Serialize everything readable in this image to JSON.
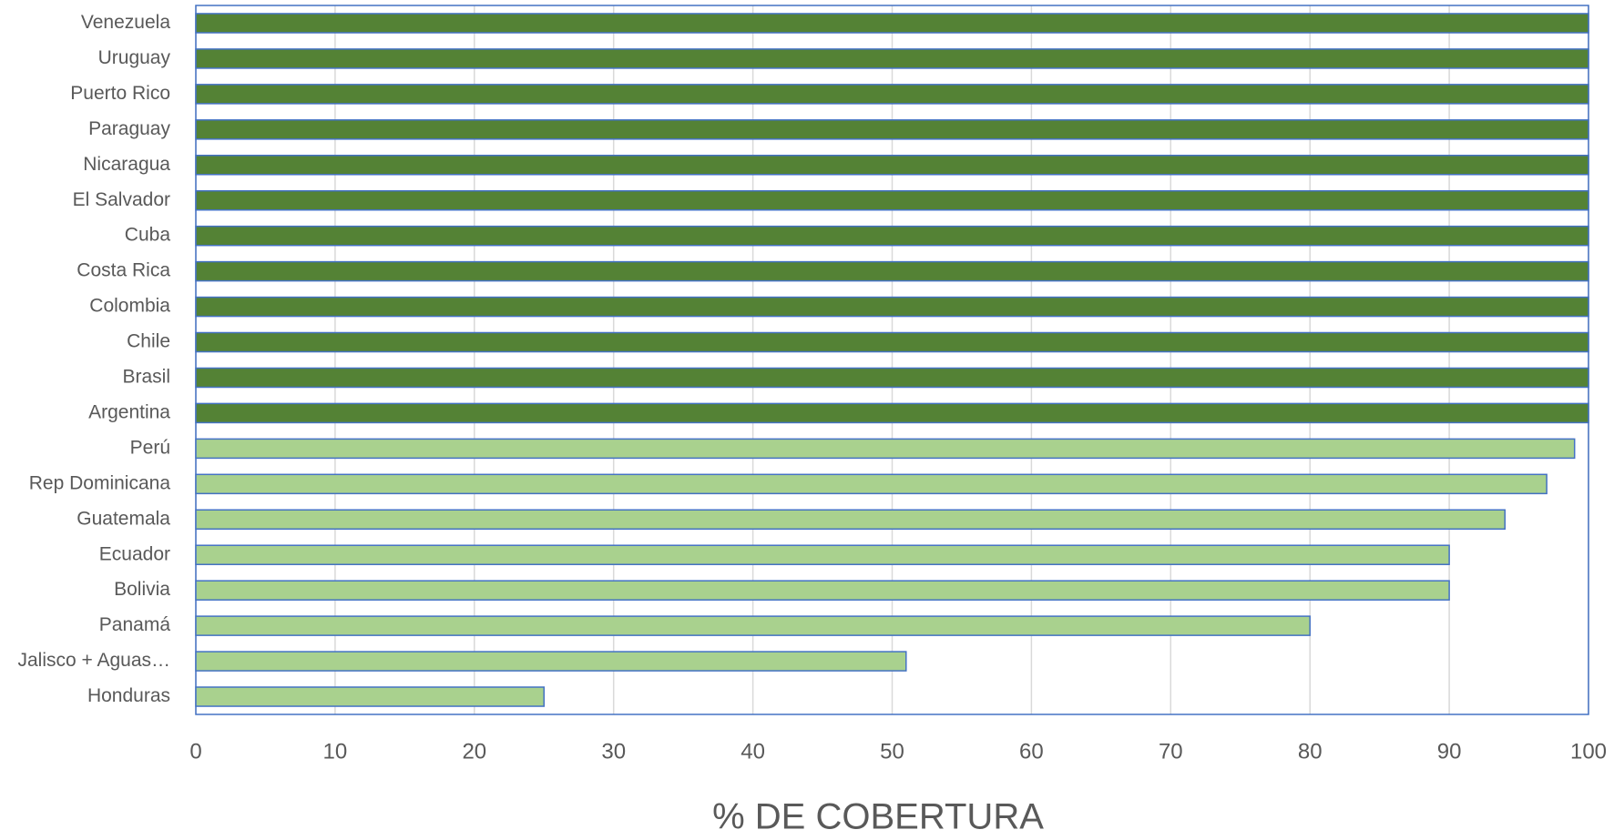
{
  "chart_data": {
    "type": "bar",
    "orientation": "horizontal",
    "x_label": "% DE COBERTURA",
    "categories": [
      "Venezuela",
      "Uruguay",
      "Puerto Rico",
      "Paraguay",
      "Nicaragua",
      "El Salvador",
      "Cuba",
      "Costa Rica",
      "Colombia",
      "Chile",
      "Brasil",
      "Argentina",
      "Perú",
      "Rep Dominicana",
      "Guatemala",
      "Ecuador",
      "Bolivia",
      "Panamá",
      "Jalisco + Aguas…",
      "Honduras"
    ],
    "values": [
      100,
      100,
      100,
      100,
      100,
      100,
      100,
      100,
      100,
      100,
      100,
      100,
      99,
      97,
      94,
      90,
      90,
      80,
      51,
      25
    ],
    "colors": [
      "#548235",
      "#548235",
      "#548235",
      "#548235",
      "#548235",
      "#548235",
      "#548235",
      "#548235",
      "#548235",
      "#548235",
      "#548235",
      "#548235",
      "#a9d18e",
      "#a9d18e",
      "#a9d18e",
      "#a9d18e",
      "#a9d18e",
      "#a9d18e",
      "#a9d18e",
      "#a9d18e"
    ],
    "border_color": "#4472c4",
    "xlim": [
      0,
      100
    ],
    "xticks": [
      0,
      10,
      20,
      30,
      40,
      50,
      60,
      70,
      80,
      90,
      100
    ],
    "grid": true
  }
}
